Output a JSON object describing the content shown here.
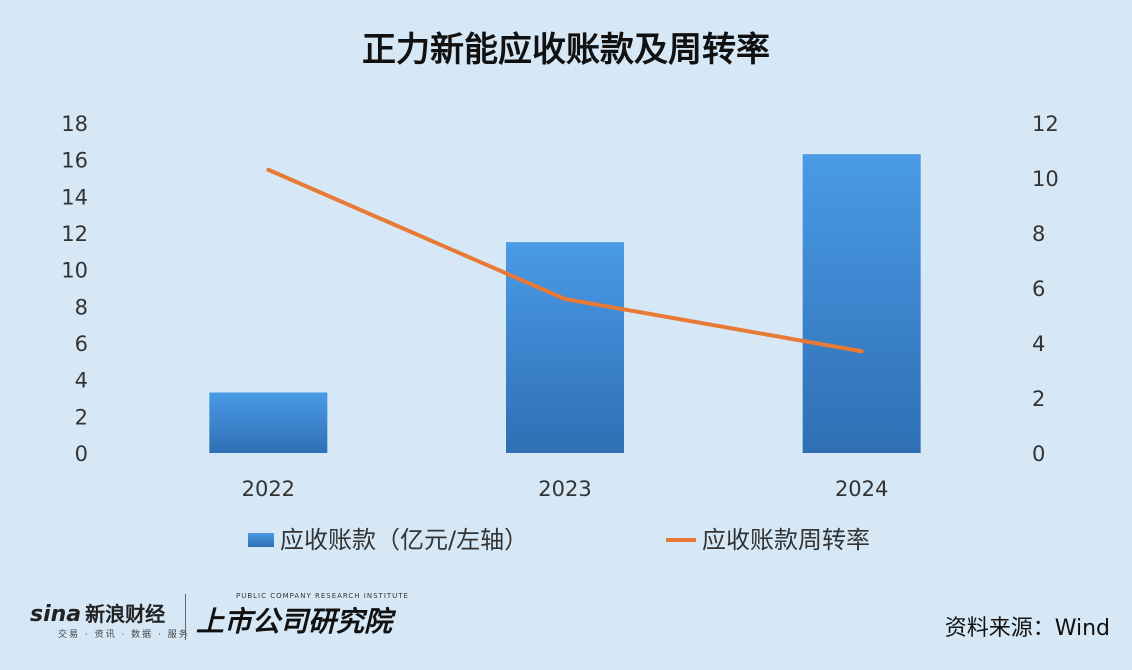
{
  "chart_data": {
    "type": "bar",
    "title": "正力新能应收账款及周转率",
    "categories": [
      "2022",
      "2023",
      "2024"
    ],
    "series": [
      {
        "name": "应收账款（亿元/左轴）",
        "type": "bar",
        "axis": "left",
        "values": [
          3.3,
          11.5,
          16.3
        ],
        "color": "#3a86d6"
      },
      {
        "name": "应收账款周转率",
        "type": "line",
        "axis": "right",
        "values": [
          10.3,
          5.6,
          3.7
        ],
        "color": "#e87a36"
      }
    ],
    "y_left": {
      "min": 0,
      "max": 18,
      "ticks": [
        "0",
        "2",
        "4",
        "6",
        "8",
        "10",
        "12",
        "14",
        "16",
        "18"
      ]
    },
    "y_right": {
      "min": 0,
      "max": 12,
      "ticks": [
        "0",
        "2",
        "4",
        "6",
        "8",
        "10",
        "12"
      ]
    },
    "grid": false,
    "legend": "bottom"
  },
  "footer": {
    "source": "资料来源：Wind",
    "sina_brand": "sina",
    "sina_cn": "新浪财经",
    "sina_sub": "交易 · 资讯 · 数据 · 服务",
    "inst_en": "PUBLIC COMPANY RESEARCH INSTITUTE",
    "inst_cn": "上市公司研究院"
  }
}
